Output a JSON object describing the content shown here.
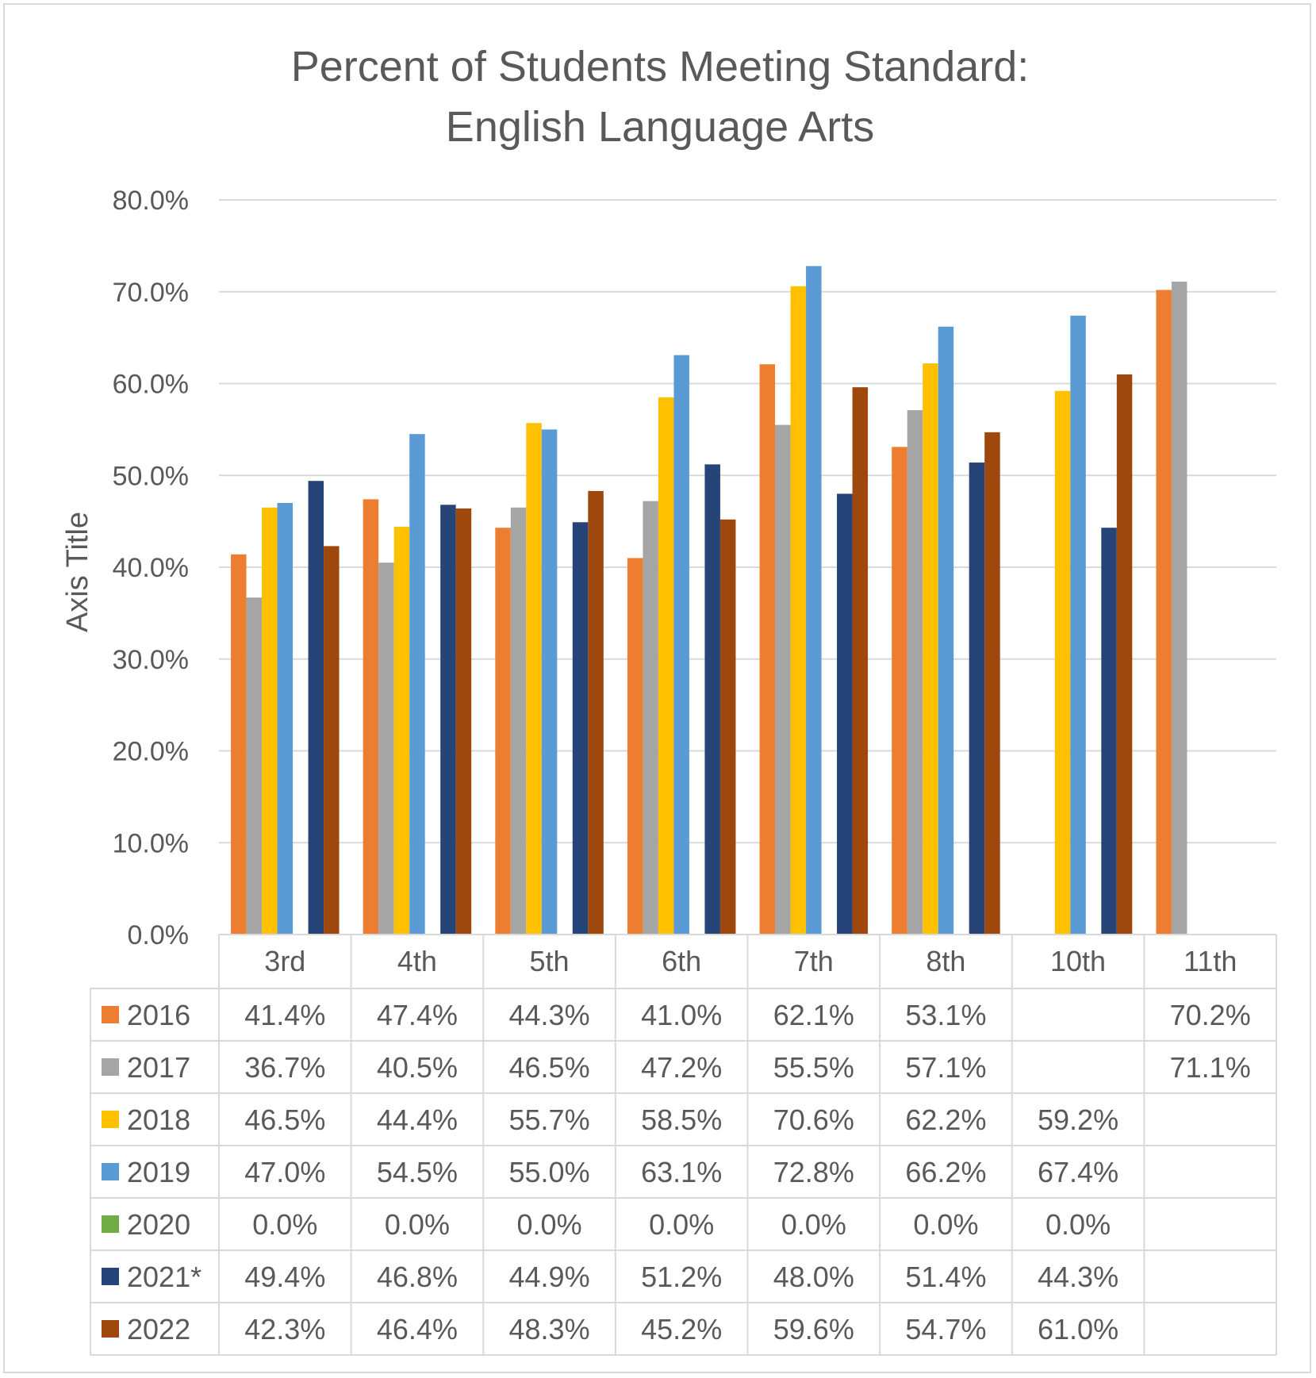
{
  "chart_data": {
    "type": "bar",
    "title": "Percent of Students Meeting Standard:",
    "subtitle": "English Language Arts",
    "ylabel": "Axis Title",
    "xlabel": "",
    "ylim": [
      0,
      80
    ],
    "yticks": [
      "0.0%",
      "10.0%",
      "20.0%",
      "30.0%",
      "40.0%",
      "50.0%",
      "60.0%",
      "70.0%",
      "80.0%"
    ],
    "grid": true,
    "legend": "data-table",
    "categories": [
      "3rd",
      "4th",
      "5th",
      "6th",
      "7th",
      "8th",
      "10th",
      "11th"
    ],
    "series": [
      {
        "name": "2016",
        "color": "#ED7D31",
        "values": [
          41.4,
          47.4,
          44.3,
          41.0,
          62.1,
          53.1,
          null,
          70.2
        ],
        "labels": [
          "41.4%",
          "47.4%",
          "44.3%",
          "41.0%",
          "62.1%",
          "53.1%",
          "",
          "70.2%"
        ]
      },
      {
        "name": "2017",
        "color": "#A5A5A5",
        "values": [
          36.7,
          40.5,
          46.5,
          47.2,
          55.5,
          57.1,
          null,
          71.1
        ],
        "labels": [
          "36.7%",
          "40.5%",
          "46.5%",
          "47.2%",
          "55.5%",
          "57.1%",
          "",
          "71.1%"
        ]
      },
      {
        "name": "2018",
        "color": "#FFC000",
        "values": [
          46.5,
          44.4,
          55.7,
          58.5,
          70.6,
          62.2,
          59.2,
          null
        ],
        "labels": [
          "46.5%",
          "44.4%",
          "55.7%",
          "58.5%",
          "70.6%",
          "62.2%",
          "59.2%",
          ""
        ]
      },
      {
        "name": "2019",
        "color": "#5B9BD5",
        "values": [
          47.0,
          54.5,
          55.0,
          63.1,
          72.8,
          66.2,
          67.4,
          null
        ],
        "labels": [
          "47.0%",
          "54.5%",
          "55.0%",
          "63.1%",
          "72.8%",
          "66.2%",
          "67.4%",
          ""
        ]
      },
      {
        "name": "2020",
        "color": "#70AD47",
        "values": [
          0.0,
          0.0,
          0.0,
          0.0,
          0.0,
          0.0,
          0.0,
          null
        ],
        "labels": [
          "0.0%",
          "0.0%",
          "0.0%",
          "0.0%",
          "0.0%",
          "0.0%",
          "0.0%",
          ""
        ]
      },
      {
        "name": "2021*",
        "color": "#264478",
        "values": [
          49.4,
          46.8,
          44.9,
          51.2,
          48.0,
          51.4,
          44.3,
          null
        ],
        "labels": [
          "49.4%",
          "46.8%",
          "44.9%",
          "51.2%",
          "48.0%",
          "51.4%",
          "44.3%",
          ""
        ]
      },
      {
        "name": "2022",
        "color": "#9E480E",
        "values": [
          42.3,
          46.4,
          48.3,
          45.2,
          59.6,
          54.7,
          61.0,
          null
        ],
        "labels": [
          "42.3%",
          "46.4%",
          "48.3%",
          "45.2%",
          "59.6%",
          "54.7%",
          "61.0%",
          ""
        ]
      }
    ]
  }
}
